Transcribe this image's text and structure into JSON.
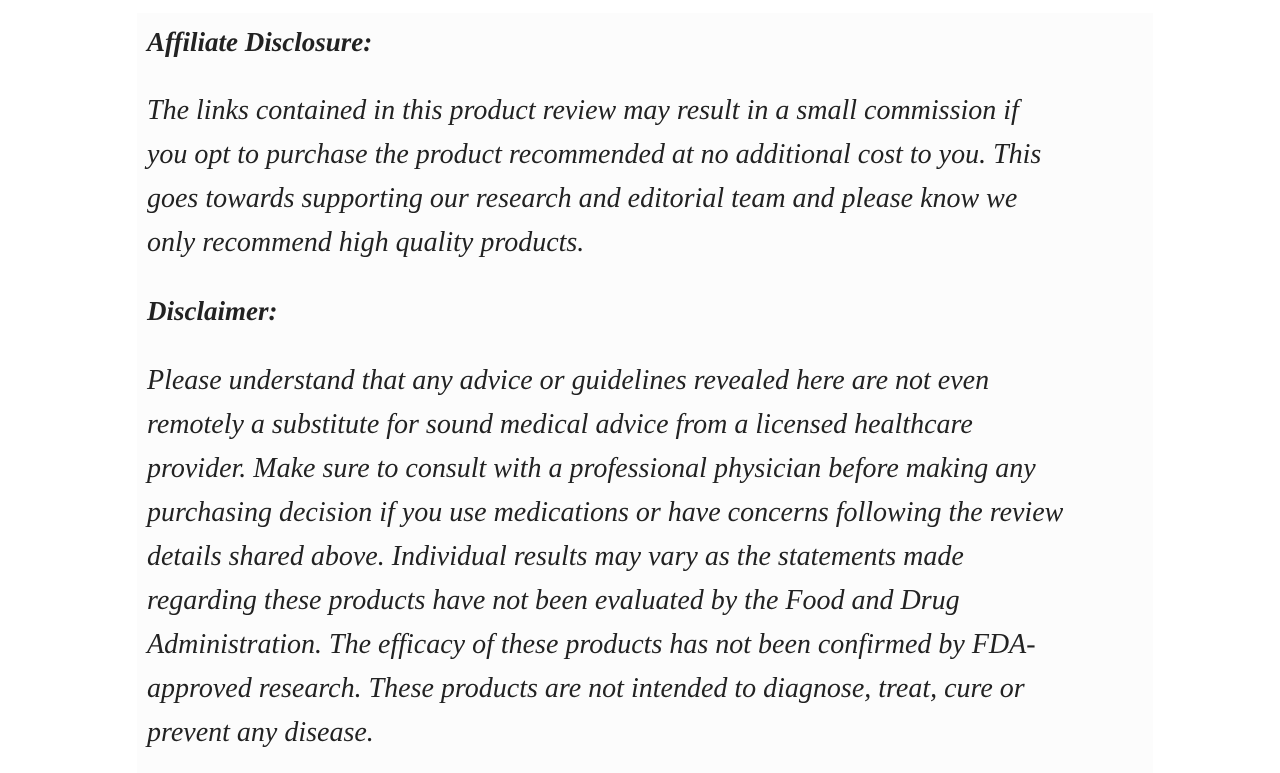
{
  "affiliate": {
    "heading": "Affiliate Disclosure:",
    "lines": [
      "The links contained in this product review may result in a small commission if",
      "you opt to purchase the product recommended at no additional cost to you. This",
      "goes towards supporting our research and editorial team and please know we",
      "only recommend high quality products."
    ]
  },
  "disclaimer": {
    "heading": "Disclaimer:",
    "lines": [
      "Please understand that any advice or guidelines revealed here are not even",
      "remotely a substitute for sound medical advice from a licensed healthcare",
      "provider. Make sure to consult with a professional physician before making any",
      "purchasing decision if you use medications or have concerns following the review",
      "details shared above. Individual results may vary as the statements made",
      "regarding these products have not been evaluated by the Food and Drug",
      "Administration. The efficacy of these products has not been confirmed by FDA-",
      "approved research. These products are not intended to diagnose, treat, cure or",
      "prevent any disease."
    ]
  }
}
